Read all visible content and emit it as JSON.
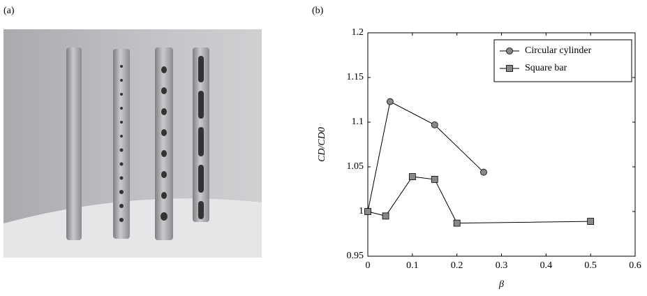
{
  "panel_labels": [
    "(a)",
    "(b)"
  ],
  "chart_data": {
    "type": "line",
    "xlabel": "β",
    "ylabel": "CD/CD0",
    "xlim": [
      0,
      0.6
    ],
    "xticks": [
      0,
      0.1,
      0.2,
      0.3,
      0.4,
      0.5,
      0.6
    ],
    "ylim": [
      0.95,
      1.2
    ],
    "yticks": [
      0.95,
      1,
      1.05,
      1.1,
      1.15,
      1.2
    ],
    "legend": "top-right",
    "series": [
      {
        "name": "Circular cylinder",
        "color": "#888888",
        "marker": "circle",
        "x": [
          0,
          0.05,
          0.15,
          0.26
        ],
        "values": [
          1,
          1.123,
          1.097,
          1.044
        ]
      },
      {
        "name": "Square bar",
        "color": "#888888",
        "marker": "square",
        "x": [
          0,
          0.04,
          0.1,
          0.15,
          0.2,
          0.5
        ],
        "values": [
          1,
          0.995,
          1.039,
          1.036,
          0.987,
          0.989
        ]
      }
    ]
  }
}
